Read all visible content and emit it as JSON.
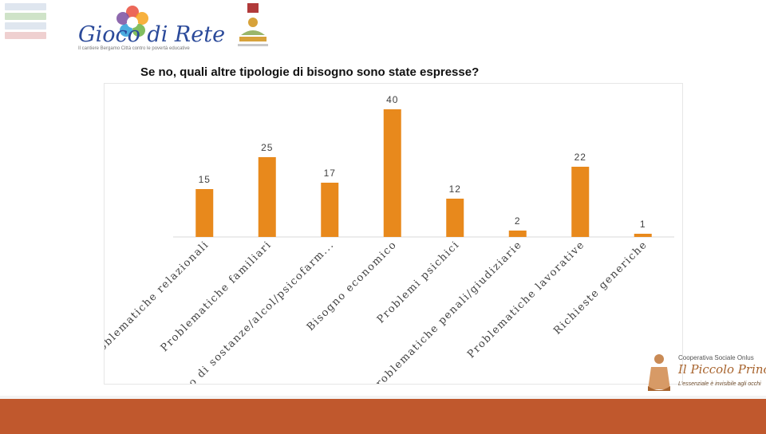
{
  "header": {
    "brand_name": "Gioco di Rete",
    "brand_subtitle": "Il cantiere Bergamo Città contro le povertà educative"
  },
  "slide": {
    "title": "Se no, quali altre tipologie di bisogno sono state espresse?"
  },
  "chart_data": {
    "type": "bar",
    "categories": [
      "Problematiche relazionali",
      "Problematiche familiari",
      "Uso di sostanze/alcol/psicofarm...",
      "Bisogno economico",
      "Problemi psichici",
      "Problematiche penali/giudiziarie",
      "Problematiche lavorative",
      "Richieste generiche"
    ],
    "values": [
      15,
      25,
      17,
      40,
      12,
      2,
      22,
      1
    ],
    "data_labels": [
      "15",
      "25",
      "17",
      "40",
      "12",
      "2",
      "22",
      "1"
    ],
    "ylim": [
      0,
      42
    ],
    "grid": false,
    "legend": "none",
    "bar_color": "#e8891c"
  },
  "footer": {
    "coop_name": "Cooperativa Sociale Onlus",
    "coop_brand": "Il Piccolo Principe",
    "coop_tagline": "L'essenziale è invisibile agli occhi",
    "bar_color": "#c0582d"
  }
}
